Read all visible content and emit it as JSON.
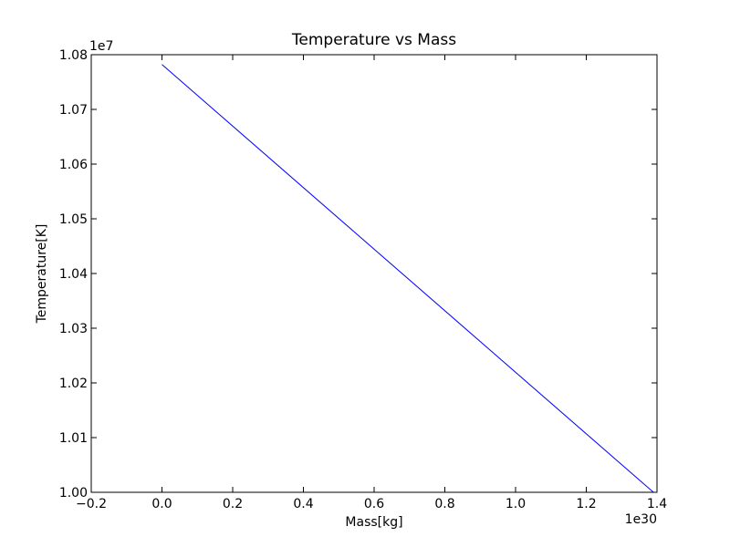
{
  "chart_data": {
    "type": "line",
    "title": "Temperature vs Mass",
    "xlabel": "Mass[kg]",
    "ylabel": "Temperature[K]",
    "x_offset_label": "1e30",
    "y_offset_label": "1e7",
    "xlim": [
      -0.2,
      1.4
    ],
    "ylim": [
      1.0,
      1.08
    ],
    "xticks": [
      -0.2,
      0.0,
      0.2,
      0.4,
      0.6,
      0.8,
      1.0,
      1.2,
      1.4
    ],
    "xtick_labels": [
      "−0.2",
      "0.0",
      "0.2",
      "0.4",
      "0.6",
      "0.8",
      "1.0",
      "1.2",
      "1.4"
    ],
    "yticks": [
      1.0,
      1.01,
      1.02,
      1.03,
      1.04,
      1.05,
      1.06,
      1.07,
      1.08
    ],
    "ytick_labels": [
      "1.00",
      "1.01",
      "1.02",
      "1.03",
      "1.04",
      "1.05",
      "1.06",
      "1.07",
      "1.08"
    ],
    "grid": false,
    "series": [
      {
        "color": "#0000ff",
        "x": [
          0.0,
          1.39
        ],
        "y": [
          1.0782,
          1.0
        ]
      }
    ]
  }
}
